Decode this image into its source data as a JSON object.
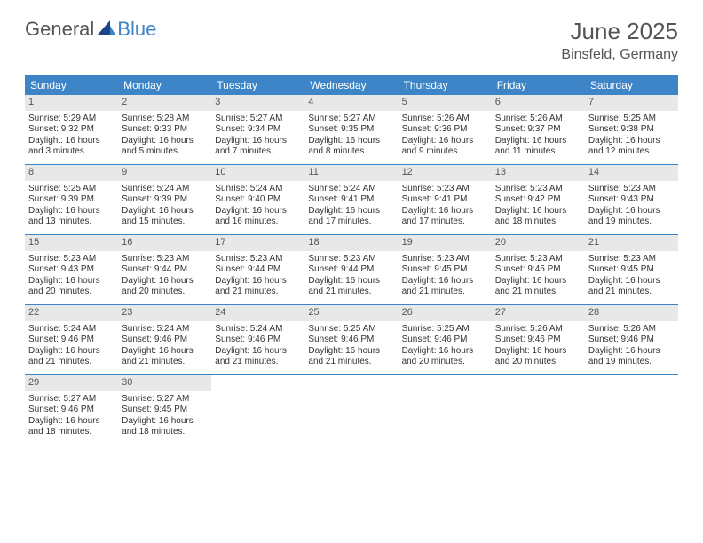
{
  "brand": {
    "part1": "General",
    "part2": "Blue"
  },
  "title": "June 2025",
  "location": "Binsfeld, Germany",
  "colors": {
    "header_bg": "#3d85c6",
    "header_text": "#ffffff",
    "daynum_bg": "#e8e8e8",
    "daynum_text": "#555555",
    "body_text": "#333333",
    "title_text": "#555555",
    "page_bg": "#ffffff",
    "rule": "#3d85c6"
  },
  "typography": {
    "title_fontsize": 26,
    "location_fontsize": 16,
    "weekday_fontsize": 12,
    "daynum_fontsize": 11,
    "body_fontsize": 10
  },
  "weekdays": [
    "Sunday",
    "Monday",
    "Tuesday",
    "Wednesday",
    "Thursday",
    "Friday",
    "Saturday"
  ],
  "weeks": [
    [
      {
        "n": "1",
        "sr": "5:29 AM",
        "ss": "9:32 PM",
        "dl": "16 hours and 3 minutes."
      },
      {
        "n": "2",
        "sr": "5:28 AM",
        "ss": "9:33 PM",
        "dl": "16 hours and 5 minutes."
      },
      {
        "n": "3",
        "sr": "5:27 AM",
        "ss": "9:34 PM",
        "dl": "16 hours and 7 minutes."
      },
      {
        "n": "4",
        "sr": "5:27 AM",
        "ss": "9:35 PM",
        "dl": "16 hours and 8 minutes."
      },
      {
        "n": "5",
        "sr": "5:26 AM",
        "ss": "9:36 PM",
        "dl": "16 hours and 9 minutes."
      },
      {
        "n": "6",
        "sr": "5:26 AM",
        "ss": "9:37 PM",
        "dl": "16 hours and 11 minutes."
      },
      {
        "n": "7",
        "sr": "5:25 AM",
        "ss": "9:38 PM",
        "dl": "16 hours and 12 minutes."
      }
    ],
    [
      {
        "n": "8",
        "sr": "5:25 AM",
        "ss": "9:39 PM",
        "dl": "16 hours and 13 minutes."
      },
      {
        "n": "9",
        "sr": "5:24 AM",
        "ss": "9:39 PM",
        "dl": "16 hours and 15 minutes."
      },
      {
        "n": "10",
        "sr": "5:24 AM",
        "ss": "9:40 PM",
        "dl": "16 hours and 16 minutes."
      },
      {
        "n": "11",
        "sr": "5:24 AM",
        "ss": "9:41 PM",
        "dl": "16 hours and 17 minutes."
      },
      {
        "n": "12",
        "sr": "5:23 AM",
        "ss": "9:41 PM",
        "dl": "16 hours and 17 minutes."
      },
      {
        "n": "13",
        "sr": "5:23 AM",
        "ss": "9:42 PM",
        "dl": "16 hours and 18 minutes."
      },
      {
        "n": "14",
        "sr": "5:23 AM",
        "ss": "9:43 PM",
        "dl": "16 hours and 19 minutes."
      }
    ],
    [
      {
        "n": "15",
        "sr": "5:23 AM",
        "ss": "9:43 PM",
        "dl": "16 hours and 20 minutes."
      },
      {
        "n": "16",
        "sr": "5:23 AM",
        "ss": "9:44 PM",
        "dl": "16 hours and 20 minutes."
      },
      {
        "n": "17",
        "sr": "5:23 AM",
        "ss": "9:44 PM",
        "dl": "16 hours and 21 minutes."
      },
      {
        "n": "18",
        "sr": "5:23 AM",
        "ss": "9:44 PM",
        "dl": "16 hours and 21 minutes."
      },
      {
        "n": "19",
        "sr": "5:23 AM",
        "ss": "9:45 PM",
        "dl": "16 hours and 21 minutes."
      },
      {
        "n": "20",
        "sr": "5:23 AM",
        "ss": "9:45 PM",
        "dl": "16 hours and 21 minutes."
      },
      {
        "n": "21",
        "sr": "5:23 AM",
        "ss": "9:45 PM",
        "dl": "16 hours and 21 minutes."
      }
    ],
    [
      {
        "n": "22",
        "sr": "5:24 AM",
        "ss": "9:46 PM",
        "dl": "16 hours and 21 minutes."
      },
      {
        "n": "23",
        "sr": "5:24 AM",
        "ss": "9:46 PM",
        "dl": "16 hours and 21 minutes."
      },
      {
        "n": "24",
        "sr": "5:24 AM",
        "ss": "9:46 PM",
        "dl": "16 hours and 21 minutes."
      },
      {
        "n": "25",
        "sr": "5:25 AM",
        "ss": "9:46 PM",
        "dl": "16 hours and 21 minutes."
      },
      {
        "n": "26",
        "sr": "5:25 AM",
        "ss": "9:46 PM",
        "dl": "16 hours and 20 minutes."
      },
      {
        "n": "27",
        "sr": "5:26 AM",
        "ss": "9:46 PM",
        "dl": "16 hours and 20 minutes."
      },
      {
        "n": "28",
        "sr": "5:26 AM",
        "ss": "9:46 PM",
        "dl": "16 hours and 19 minutes."
      }
    ],
    [
      {
        "n": "29",
        "sr": "5:27 AM",
        "ss": "9:46 PM",
        "dl": "16 hours and 18 minutes."
      },
      {
        "n": "30",
        "sr": "5:27 AM",
        "ss": "9:45 PM",
        "dl": "16 hours and 18 minutes."
      },
      null,
      null,
      null,
      null,
      null
    ]
  ],
  "labels": {
    "sunrise": "Sunrise:",
    "sunset": "Sunset:",
    "daylight": "Daylight:"
  }
}
